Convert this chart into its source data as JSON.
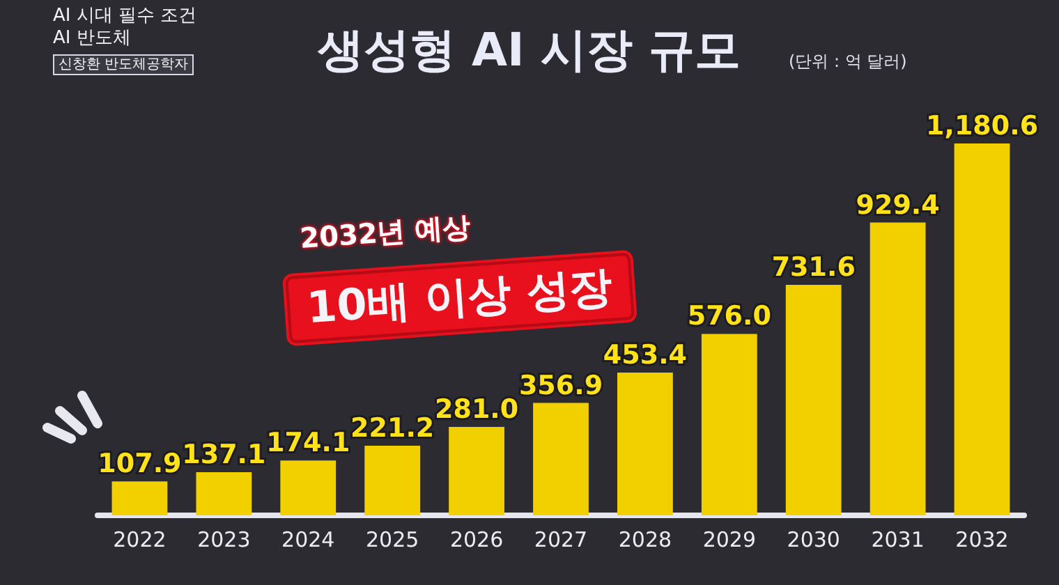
{
  "chart_data": {
    "type": "bar",
    "title": "생성형 AI 시장 규모",
    "subtitle": "(단위 : 억 달러)",
    "categories": [
      "2022",
      "2023",
      "2024",
      "2025",
      "2026",
      "2027",
      "2028",
      "2029",
      "2030",
      "2031",
      "2032"
    ],
    "values": [
      107.9,
      137.1,
      174.1,
      221.2,
      281.0,
      356.9,
      453.4,
      576.0,
      731.6,
      929.4,
      1180.6
    ],
    "value_labels": [
      "107.9",
      "137.1",
      "174.1",
      "221.2",
      "281.0",
      "356.9",
      "453.4",
      "576.0",
      "731.6",
      "929.4",
      "1,180.6"
    ],
    "color": "#f2d000",
    "tick_labels": "x",
    "annotations": [
      "AI 시대 필수 조건",
      "AI 반도체",
      "신창환 반도체공학자",
      "2032년 예상",
      "10배 이상 성장"
    ]
  }
}
